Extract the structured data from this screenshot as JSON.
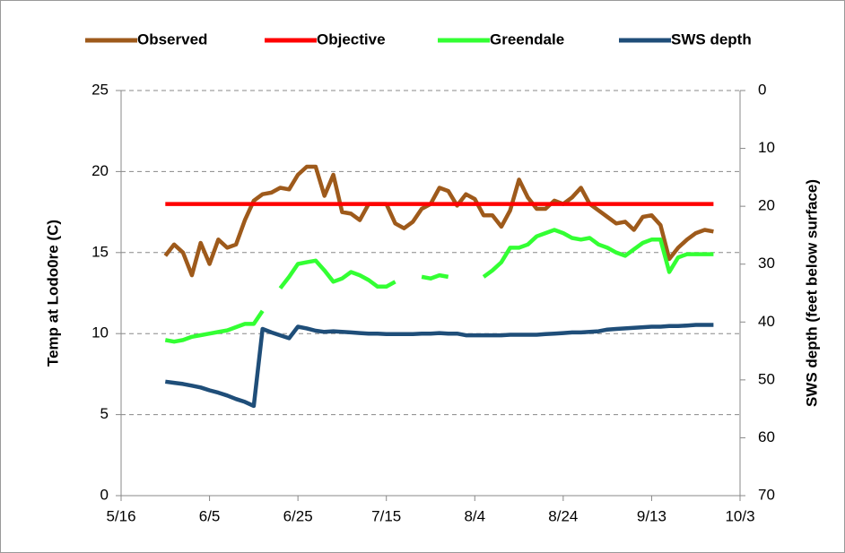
{
  "chart_data": {
    "type": "line",
    "y_label": "Temp at Lodo0re (C)",
    "y2_label": "SWS depth (feet below surface)",
    "xlim": [
      "5/16",
      "10/3"
    ],
    "xticks": [
      "5/16",
      "6/5",
      "6/25",
      "7/15",
      "8/4",
      "8/24",
      "9/13",
      "10/3"
    ],
    "ylim": [
      0,
      25
    ],
    "yticks": [
      0,
      5,
      10,
      15,
      20,
      25
    ],
    "y2lim": [
      0,
      70
    ],
    "y2ticks": [
      0,
      10,
      20,
      30,
      40,
      50,
      60,
      70
    ],
    "y2_inverted": true,
    "grid": true,
    "legend": "top",
    "x": [
      "5/26",
      "5/28",
      "5/30",
      "6/1",
      "6/3",
      "6/5",
      "6/7",
      "6/9",
      "6/11",
      "6/13",
      "6/15",
      "6/17",
      "6/19",
      "6/21",
      "6/23",
      "6/25",
      "6/27",
      "6/29",
      "7/1",
      "7/3",
      "7/5",
      "7/7",
      "7/9",
      "7/11",
      "7/13",
      "7/15",
      "7/17",
      "7/19",
      "7/21",
      "7/23",
      "7/25",
      "7/27",
      "7/29",
      "7/31",
      "8/2",
      "8/4",
      "8/6",
      "8/8",
      "8/10",
      "8/12",
      "8/14",
      "8/16",
      "8/18",
      "8/20",
      "8/22",
      "8/24",
      "8/26",
      "8/28",
      "8/30",
      "9/1",
      "9/3",
      "9/5",
      "9/7",
      "9/9",
      "9/11",
      "9/13",
      "9/15",
      "9/17",
      "9/19",
      "9/21",
      "9/23",
      "9/25",
      "9/27"
    ],
    "series": [
      {
        "name": "Observed",
        "color": "#9e5a1b",
        "values": [
          14.8,
          15.5,
          15.0,
          13.6,
          15.6,
          14.3,
          15.8,
          15.3,
          15.5,
          17.0,
          18.2,
          18.6,
          18.7,
          19.0,
          18.9,
          19.8,
          20.3,
          20.3,
          18.5,
          19.8,
          17.5,
          17.4,
          17.0,
          18.0,
          18.0,
          18.0,
          16.8,
          16.5,
          16.9,
          17.7,
          18.0,
          19.0,
          18.8,
          17.9,
          18.6,
          18.3,
          17.3,
          17.3,
          16.6,
          17.6,
          19.5,
          18.4,
          17.7,
          17.7,
          18.2,
          18.0,
          18.4,
          19.0,
          18.0,
          17.6,
          17.2,
          16.8,
          16.9,
          16.4,
          17.2,
          17.3,
          16.7,
          14.6,
          15.3,
          15.8,
          16.2,
          16.4,
          16.3
        ]
      },
      {
        "name": "Objective",
        "color": "#ff0000",
        "values": [
          18,
          18,
          18,
          18,
          18,
          18,
          18,
          18,
          18,
          18,
          18,
          18,
          18,
          18,
          18,
          18,
          18,
          18,
          18,
          18,
          18,
          18,
          18,
          18,
          18,
          18,
          18,
          18,
          18,
          18,
          18,
          18,
          18,
          18,
          18,
          18,
          18,
          18,
          18,
          18,
          18,
          18,
          18,
          18,
          18,
          18,
          18,
          18,
          18,
          18,
          18,
          18,
          18,
          18,
          18,
          18,
          18,
          18,
          18,
          18,
          18,
          18,
          18
        ]
      },
      {
        "name": "Greendale",
        "color": "#33ff33",
        "values": [
          9.6,
          9.5,
          9.6,
          9.8,
          9.9,
          10.0,
          10.1,
          10.2,
          10.4,
          10.6,
          10.6,
          11.4,
          null,
          12.8,
          13.5,
          14.3,
          14.4,
          14.5,
          13.9,
          13.2,
          13.4,
          13.8,
          13.6,
          13.3,
          12.9,
          12.9,
          13.2,
          null,
          null,
          13.5,
          13.4,
          13.6,
          13.5,
          null,
          null,
          null,
          13.5,
          13.9,
          14.4,
          15.3,
          15.3,
          15.5,
          16.0,
          16.2,
          16.4,
          16.2,
          15.9,
          15.8,
          15.9,
          15.5,
          15.3,
          15.0,
          14.8,
          15.2,
          15.6,
          15.8,
          15.8,
          13.8,
          14.7,
          14.9,
          14.9,
          14.9,
          14.9
        ]
      },
      {
        "name": "SWS depth",
        "color": "#1f4e79",
        "axis": "y2",
        "values": [
          50.3,
          50.5,
          50.7,
          51.0,
          51.3,
          51.8,
          52.2,
          52.7,
          53.3,
          53.8,
          54.5,
          41.2,
          41.8,
          42.3,
          42.8,
          40.8,
          41.1,
          41.5,
          41.7,
          41.6,
          41.7,
          41.8,
          41.9,
          42.0,
          42.0,
          42.1,
          42.1,
          42.1,
          42.1,
          42.0,
          42.0,
          41.9,
          42.0,
          42.0,
          42.3,
          42.3,
          42.3,
          42.3,
          42.3,
          42.2,
          42.2,
          42.2,
          42.2,
          42.1,
          42.0,
          41.9,
          41.8,
          41.8,
          41.7,
          41.6,
          41.3,
          41.2,
          41.1,
          41.0,
          40.9,
          40.8,
          40.8,
          40.7,
          40.7,
          40.6,
          40.5,
          40.5,
          40.5
        ]
      }
    ]
  }
}
